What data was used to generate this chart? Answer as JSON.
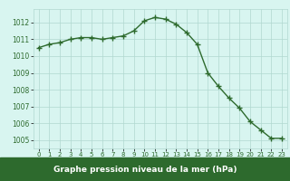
{
  "hours": [
    0,
    1,
    2,
    3,
    4,
    5,
    6,
    7,
    8,
    9,
    10,
    11,
    12,
    13,
    14,
    15,
    16,
    17,
    18,
    19,
    20,
    21,
    22,
    23
  ],
  "pressure": [
    1010.5,
    1010.7,
    1010.8,
    1011.0,
    1011.1,
    1011.1,
    1011.0,
    1011.1,
    1011.2,
    1011.5,
    1012.1,
    1012.3,
    1012.2,
    1011.9,
    1011.4,
    1010.7,
    1009.0,
    1008.2,
    1007.5,
    1006.9,
    1006.1,
    1005.6,
    1005.1,
    1005.1
  ],
  "line_color": "#2d6a2d",
  "marker": "+",
  "marker_size": 5,
  "line_width": 1.0,
  "bg_color": "#d8f5f0",
  "grid_color": "#b0d8d0",
  "ylabel_ticks": [
    1005,
    1006,
    1007,
    1008,
    1009,
    1010,
    1011,
    1012
  ],
  "xlabel_label": "Graphe pression niveau de la mer (hPa)",
  "label_fg": "white",
  "label_bg": "#2d6a2d",
  "ylim": [
    1004.5,
    1012.8
  ],
  "xlim": [
    -0.5,
    23.5
  ]
}
